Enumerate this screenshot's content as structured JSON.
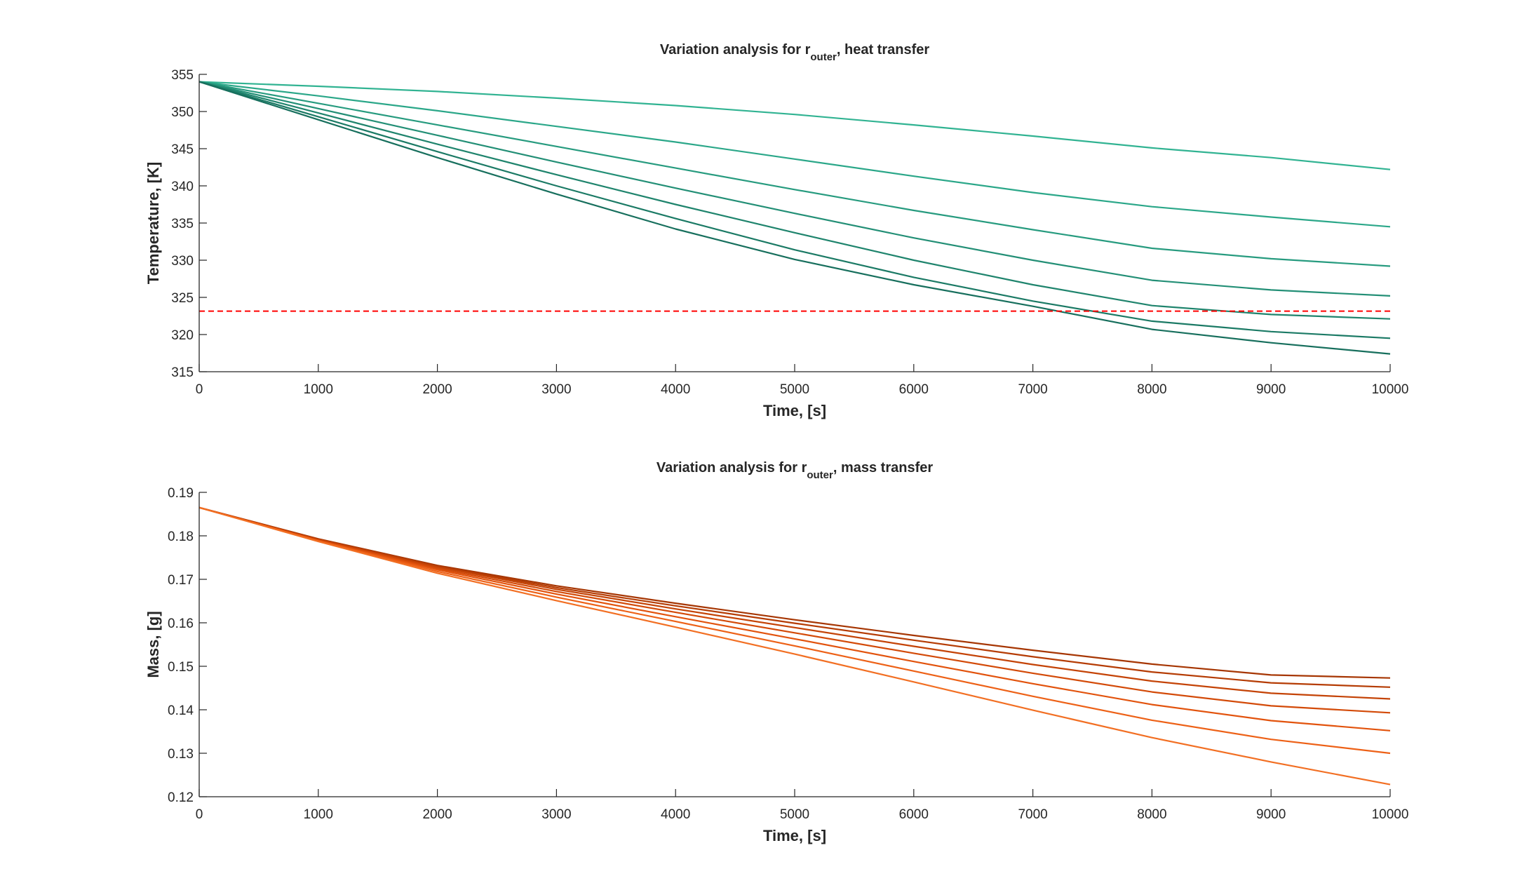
{
  "chart_data": [
    {
      "type": "line",
      "title": {
        "prefix": "Variation analysis for r",
        "subscript": "outer",
        "suffix": ", heat transfer"
      },
      "xlabel": "Time, [s]",
      "ylabel": "Temperature, [K]",
      "xlim": [
        0,
        10000
      ],
      "ylim": [
        315,
        355
      ],
      "xticks": [
        0,
        1000,
        2000,
        3000,
        4000,
        5000,
        6000,
        7000,
        8000,
        9000,
        10000
      ],
      "yticks": [
        315,
        320,
        325,
        330,
        335,
        340,
        345,
        350,
        355
      ],
      "grid": false,
      "reference_line": {
        "y": 323.15,
        "color": "#ff0000",
        "style": "dashed"
      },
      "x": [
        0,
        1000,
        2000,
        3000,
        4000,
        5000,
        6000,
        7000,
        8000,
        9000,
        10000
      ],
      "series": [
        {
          "color": "#31b392",
          "values": [
            354.0,
            353.4,
            352.7,
            351.8,
            350.8,
            349.6,
            348.2,
            346.7,
            345.1,
            343.8,
            342.2
          ]
        },
        {
          "color": "#2ba789",
          "values": [
            354.0,
            352.1,
            350.1,
            348.0,
            345.9,
            343.6,
            341.3,
            339.1,
            337.2,
            335.8,
            334.5
          ]
        },
        {
          "color": "#279b7f",
          "values": [
            354.0,
            351.1,
            348.2,
            345.3,
            342.4,
            339.5,
            336.7,
            334.1,
            331.6,
            330.2,
            329.2
          ]
        },
        {
          "color": "#238f76",
          "values": [
            354.0,
            350.4,
            346.8,
            343.2,
            339.7,
            336.3,
            333.0,
            330.0,
            327.3,
            326.0,
            325.2
          ]
        },
        {
          "color": "#1f846d",
          "values": [
            354.0,
            349.8,
            345.6,
            341.5,
            337.5,
            333.7,
            330.0,
            326.7,
            323.9,
            322.7,
            322.1
          ]
        },
        {
          "color": "#1b7a65",
          "values": [
            354.0,
            349.3,
            344.6,
            340.0,
            335.6,
            331.4,
            327.7,
            324.5,
            321.8,
            320.4,
            319.5
          ]
        },
        {
          "color": "#176f5d",
          "values": [
            354.0,
            348.9,
            343.8,
            338.9,
            334.2,
            330.1,
            326.7,
            323.8,
            320.7,
            318.9,
            317.4
          ]
        }
      ]
    },
    {
      "type": "line",
      "title": {
        "prefix": "Variation analysis for r",
        "subscript": "outer",
        "suffix": ", mass transfer"
      },
      "xlabel": "Time, [s]",
      "ylabel": "Mass, [g]",
      "xlim": [
        0,
        10000
      ],
      "ylim": [
        0.12,
        0.19
      ],
      "xticks": [
        0,
        1000,
        2000,
        3000,
        4000,
        5000,
        6000,
        7000,
        8000,
        9000,
        10000
      ],
      "yticks": [
        0.12,
        0.13,
        0.14,
        0.15,
        0.16,
        0.17,
        0.18,
        0.19
      ],
      "grid": false,
      "x": [
        0,
        1000,
        2000,
        3000,
        4000,
        5000,
        6000,
        7000,
        8000,
        9000,
        10000
      ],
      "series": [
        {
          "color": "#a63603",
          "values": [
            0.1865,
            0.1793,
            0.1732,
            0.1685,
            0.1645,
            0.1607,
            0.1571,
            0.1537,
            0.1505,
            0.148,
            0.1473
          ]
        },
        {
          "color": "#b53c04",
          "values": [
            0.1865,
            0.1792,
            0.173,
            0.1681,
            0.1639,
            0.1599,
            0.156,
            0.1522,
            0.1487,
            0.1462,
            0.1452
          ]
        },
        {
          "color": "#c44306",
          "values": [
            0.1865,
            0.1791,
            0.1728,
            0.1677,
            0.1632,
            0.1589,
            0.1546,
            0.1504,
            0.1466,
            0.1438,
            0.1425
          ]
        },
        {
          "color": "#d34a08",
          "values": [
            0.1865,
            0.179,
            0.1725,
            0.1672,
            0.1624,
            0.1577,
            0.153,
            0.1484,
            0.1441,
            0.1409,
            0.1393
          ]
        },
        {
          "color": "#e2530d",
          "values": [
            0.1865,
            0.1789,
            0.1722,
            0.1666,
            0.1614,
            0.1563,
            0.1511,
            0.146,
            0.1412,
            0.1375,
            0.1352
          ]
        },
        {
          "color": "#ed6117",
          "values": [
            0.1865,
            0.1788,
            0.1718,
            0.1659,
            0.1603,
            0.1547,
            0.1489,
            0.1431,
            0.1376,
            0.1332,
            0.13
          ]
        },
        {
          "color": "#f26f23",
          "values": [
            0.1865,
            0.1787,
            0.1714,
            0.1651,
            0.159,
            0.1528,
            0.1464,
            0.1399,
            0.1336,
            0.128,
            0.1228
          ]
        }
      ]
    }
  ]
}
